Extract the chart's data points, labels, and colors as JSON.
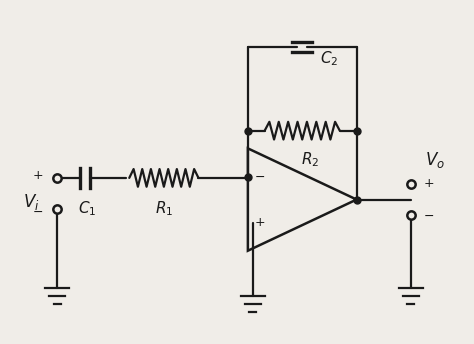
{
  "bg_color": "#f0ede8",
  "line_color": "#1a1a1a",
  "line_width": 1.6,
  "figsize": [
    4.74,
    3.44
  ],
  "dpi": 100,
  "label_fontsize": 11
}
